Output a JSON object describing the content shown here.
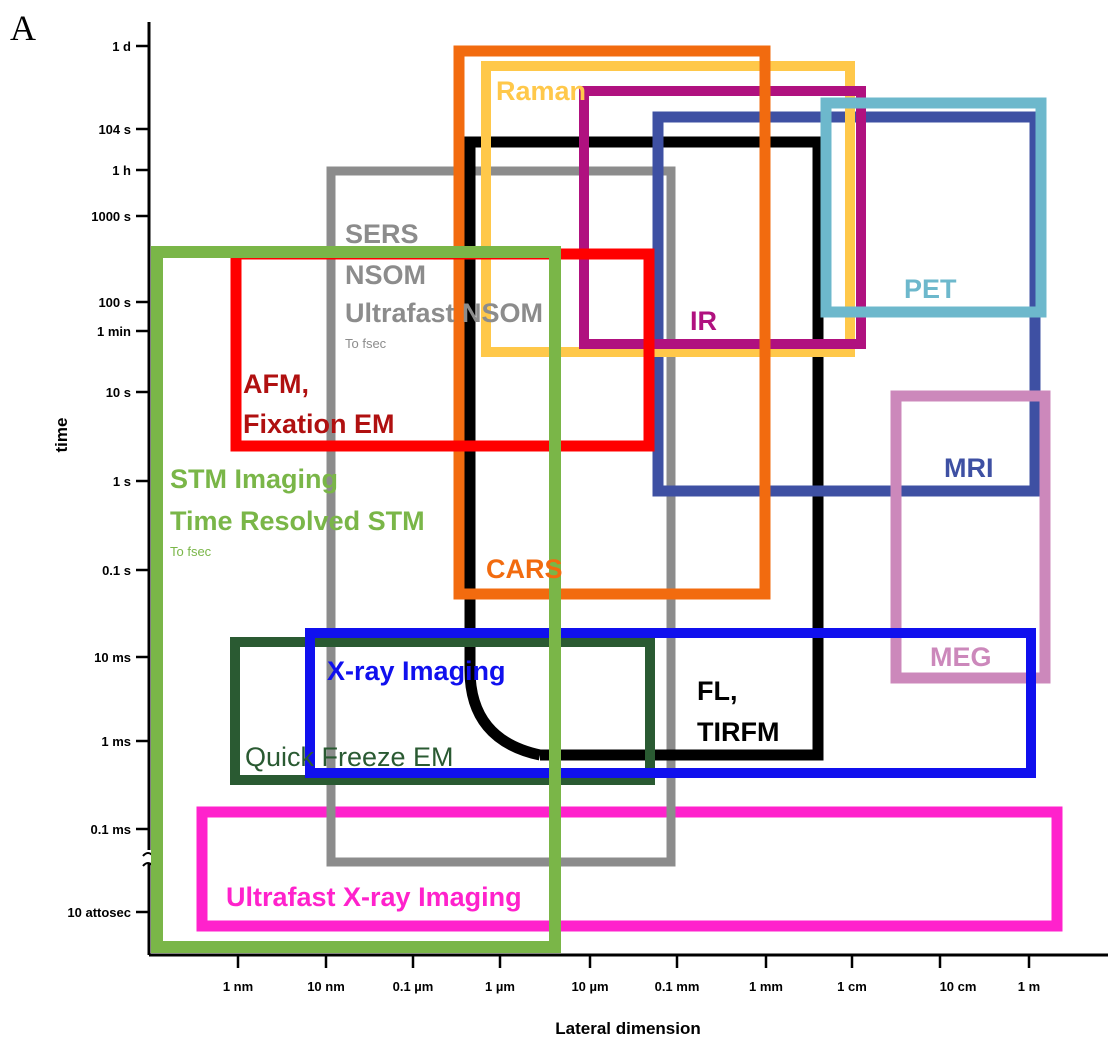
{
  "panel_label": "A",
  "axes": {
    "y_title": "time",
    "x_title": "Lateral dimension",
    "y_ticks": [
      "1 d",
      "104 s",
      "1 h",
      "1000 s",
      "100 s",
      "1 min",
      "10 s",
      "1 s",
      "0.1 s",
      "10 ms",
      "1 ms",
      "0.1 ms",
      "10 attosec"
    ],
    "x_ticks": [
      "1 nm",
      "10 nm",
      "0.1 µm",
      "1 µm",
      "10 µm",
      "0.1 mm",
      "1 mm",
      "1 cm",
      "10 cm",
      "1 m"
    ]
  },
  "colors": {
    "stm": "#7ab648",
    "afm": "#ff0000",
    "sers_nsom": "#8c8c8c",
    "fl": "#000000",
    "cars": "#f26b0f",
    "raman": "#ffc84a",
    "ir": "#b0117f",
    "mri": "#3e50a3",
    "pet": "#6db8cc",
    "meg": "#cc88bb",
    "xray": "#1010ee",
    "quick_freeze": "#2a5a32",
    "ultrafast_xray": "#ff22cc"
  },
  "regions": {
    "stm": {
      "label": "STM Imaging",
      "label2": "Time Resolved STM",
      "note": "To fsec"
    },
    "afm": {
      "label": "AFM,",
      "label2": "Fixation EM"
    },
    "sers_nsom": {
      "label": "SERS",
      "label2": "NSOM",
      "label3": "Ultrafast NSOM",
      "note": "To fsec"
    },
    "fl": {
      "label": "FL,",
      "label2": "TIRFM"
    },
    "cars": {
      "label": "CARS"
    },
    "raman": {
      "label": "Raman"
    },
    "ir": {
      "label": "IR"
    },
    "mri": {
      "label": "MRI"
    },
    "pet": {
      "label": "PET"
    },
    "meg": {
      "label": "MEG"
    },
    "xray": {
      "label": "X-ray Imaging"
    },
    "quick_freeze": {
      "label": "Quick Freeze EM"
    },
    "ultrafast_xray": {
      "label": "Ultrafast X-ray Imaging"
    }
  }
}
